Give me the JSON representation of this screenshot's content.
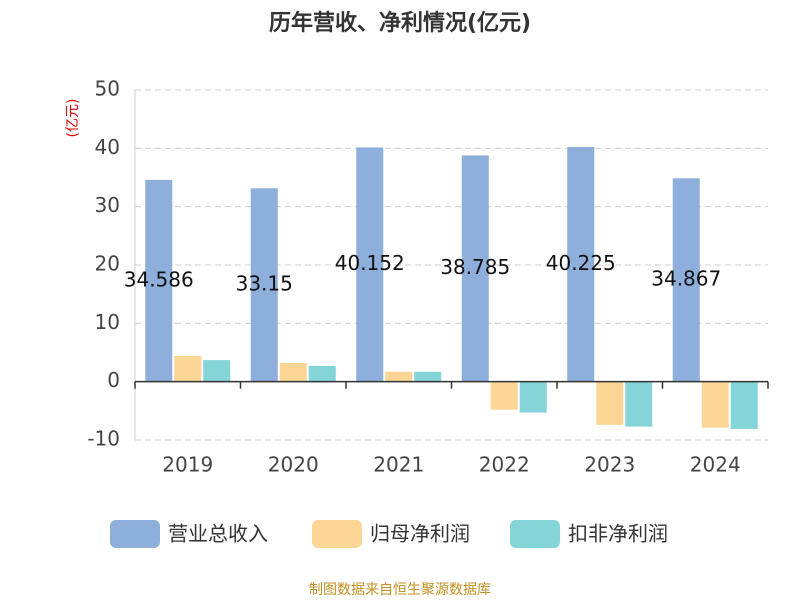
{
  "chart_data": {
    "type": "bar",
    "title": "历年营收、净利情况(亿元)",
    "y_label": "(亿元)",
    "categories": [
      "2019",
      "2020",
      "2021",
      "2022",
      "2023",
      "2024"
    ],
    "series": [
      {
        "name": "营业总收入",
        "color": "#8eaedc",
        "values": [
          34.586,
          33.15,
          40.152,
          38.785,
          40.225,
          34.867
        ]
      },
      {
        "name": "归母净利润",
        "color": "#fdd595",
        "values": [
          4.4,
          3.2,
          1.7,
          -4.8,
          -7.4,
          -7.9
        ]
      },
      {
        "name": "扣非净利润",
        "color": "#84d5d8",
        "values": [
          3.7,
          2.7,
          1.7,
          -5.3,
          -7.7,
          -8.1
        ]
      }
    ],
    "ylim": [
      -10,
      50
    ],
    "yticks": [
      -10,
      0,
      10,
      20,
      30,
      40,
      50
    ],
    "grid": true,
    "source": "制图数据来自恒生聚源数据库"
  }
}
